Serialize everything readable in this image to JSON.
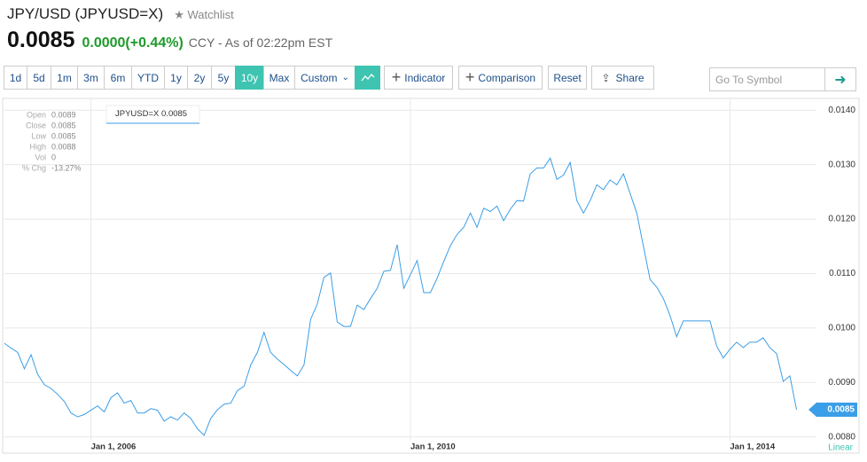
{
  "header": {
    "title": "JPY/USD (JPYUSD=X)",
    "watchlist": "Watchlist",
    "price": "0.0085",
    "change": "0.0000(+0.44%)",
    "status": "CCY - As of 02:22pm EST"
  },
  "toolbar": {
    "ranges": [
      "1d",
      "5d",
      "1m",
      "3m",
      "6m",
      "YTD",
      "1y",
      "2y",
      "5y",
      "10y",
      "Max"
    ],
    "active_range": "10y",
    "custom": "Custom",
    "indicator": "Indicator",
    "comparison": "Comparison",
    "reset": "Reset",
    "share": "Share",
    "symbol_placeholder": "Go To Symbol"
  },
  "chart_data": {
    "type": "line",
    "series": [
      {
        "name": "JPYUSD=X",
        "color": "#3b9ee8",
        "values": [
          0.00972,
          0.00963,
          0.00955,
          0.00925,
          0.00951,
          0.00915,
          0.00896,
          0.00889,
          0.00878,
          0.00865,
          0.00844,
          0.00837,
          0.00841,
          0.00849,
          0.00857,
          0.00846,
          0.00872,
          0.00881,
          0.00862,
          0.00867,
          0.00844,
          0.00844,
          0.00852,
          0.00849,
          0.00829,
          0.00837,
          0.00831,
          0.00844,
          0.00834,
          0.00815,
          0.00803,
          0.00834,
          0.0085,
          0.0086,
          0.00862,
          0.00885,
          0.00893,
          0.00932,
          0.00955,
          0.00992,
          0.00955,
          0.00943,
          0.00933,
          0.00922,
          0.00912,
          0.00932,
          0.01016,
          0.01044,
          0.01093,
          0.01101,
          0.01011,
          0.01003,
          0.01003,
          0.01042,
          0.01034,
          0.01054,
          0.01073,
          0.01104,
          0.01106,
          0.01153,
          0.01073,
          0.01098,
          0.01124,
          0.01065,
          0.01065,
          0.01091,
          0.01122,
          0.01151,
          0.01172,
          0.01185,
          0.01211,
          0.01185,
          0.0122,
          0.01214,
          0.01224,
          0.01197,
          0.01218,
          0.01234,
          0.01233,
          0.01283,
          0.01294,
          0.01294,
          0.01312,
          0.01273,
          0.01281,
          0.01304,
          0.01234,
          0.01211,
          0.01234,
          0.01263,
          0.01254,
          0.01272,
          0.01263,
          0.01283,
          0.01247,
          0.01211,
          0.0115,
          0.01089,
          0.01075,
          0.01054,
          0.01023,
          0.00984,
          0.01013,
          0.01013,
          0.01013,
          0.01013,
          0.01013,
          0.00967,
          0.00945,
          0.00961,
          0.00974,
          0.00964,
          0.00974,
          0.00974,
          0.00982,
          0.00964,
          0.00953,
          0.00902,
          0.00912,
          0.0085
        ]
      }
    ],
    "legend_value": "0.0085",
    "xlim": [
      0,
      122
    ],
    "xticks": [
      {
        "value": 13,
        "label": "Jan 1, 2006"
      },
      {
        "value": 61,
        "label": "Jan 1, 2010"
      },
      {
        "value": 109,
        "label": "Jan 1, 2014"
      }
    ],
    "ylim": [
      0.00793,
      0.0142
    ],
    "yticks": [
      {
        "value": 0.008,
        "label": "0.0080"
      },
      {
        "value": 0.009,
        "label": "0.0090"
      },
      {
        "value": 0.01,
        "label": "0.0100"
      },
      {
        "value": 0.011,
        "label": "0.0110"
      },
      {
        "value": 0.012,
        "label": "0.0120"
      },
      {
        "value": 0.013,
        "label": "0.0130"
      },
      {
        "value": 0.014,
        "label": "0.0140"
      }
    ],
    "grid": true,
    "scale": "Linear",
    "info": [
      {
        "label": "Open",
        "value": "0.0089"
      },
      {
        "label": "Close",
        "value": "0.0085"
      },
      {
        "label": "Low",
        "value": "0.0085"
      },
      {
        "label": "High",
        "value": "0.0088"
      },
      {
        "label": "Vol",
        "value": "0"
      },
      {
        "label": "% Chg",
        "value": "-13.27%"
      }
    ]
  }
}
